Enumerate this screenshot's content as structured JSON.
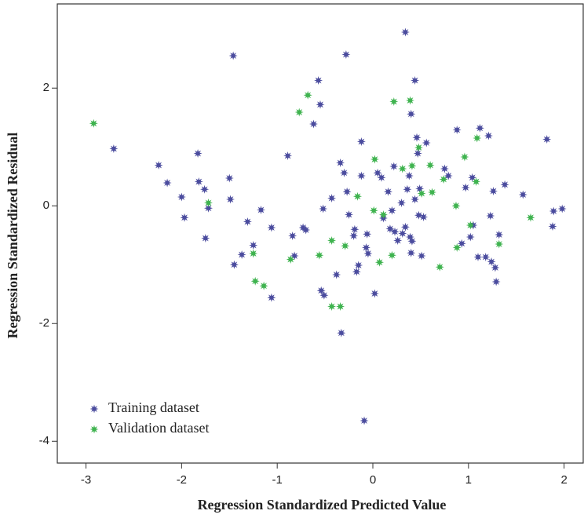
{
  "chart_data": {
    "type": "scatter",
    "x_label": "Regression Standardized Predicted Value",
    "y_label": "Regression Standardized Residual",
    "xlim": [
      -3.3,
      2.2
    ],
    "ylim": [
      -4.37,
      3.43
    ],
    "xticks": [
      -3,
      -2,
      -1,
      0,
      1,
      2
    ],
    "yticks": [
      -4,
      -2,
      0,
      2
    ],
    "legend": "lower left",
    "series": [
      {
        "name": "Training dataset",
        "color": "#4b4c9e",
        "x": [
          -2.71,
          -2.24,
          -2.15,
          -2.0,
          -1.97,
          -1.83,
          -1.82,
          -1.76,
          -1.72,
          -1.75,
          -1.46,
          -1.5,
          -1.49,
          -1.45,
          -1.37,
          -1.31,
          -1.25,
          -1.17,
          -1.06,
          -1.06,
          -0.89,
          -0.84,
          -0.82,
          -0.73,
          -0.7,
          -0.62,
          -0.57,
          -0.55,
          -0.54,
          -0.51,
          -0.52,
          -0.43,
          -0.38,
          -0.34,
          -0.33,
          -0.3,
          -0.28,
          -0.27,
          -0.25,
          -0.2,
          -0.19,
          -0.17,
          -0.15,
          -0.12,
          -0.12,
          -0.09,
          -0.06,
          -0.07,
          -0.05,
          0.02,
          0.05,
          0.09,
          0.11,
          0.16,
          0.18,
          0.2,
          0.22,
          0.23,
          0.26,
          0.3,
          0.31,
          0.34,
          0.34,
          0.36,
          0.38,
          0.39,
          0.4,
          0.4,
          0.41,
          0.44,
          0.44,
          0.46,
          0.47,
          0.48,
          0.49,
          0.51,
          0.53,
          0.56,
          0.75,
          0.79,
          0.88,
          0.97,
          1.04,
          1.02,
          1.05,
          0.93,
          1.1,
          1.12,
          1.18,
          1.21,
          1.24,
          1.23,
          1.26,
          1.28,
          1.29,
          1.32,
          1.38,
          1.82,
          1.89,
          1.88,
          1.98,
          1.57
        ],
        "y": [
          0.97,
          0.69,
          0.39,
          0.15,
          -0.2,
          0.89,
          0.41,
          0.28,
          -0.04,
          -0.55,
          2.55,
          0.47,
          0.11,
          -1.0,
          -0.83,
          -0.27,
          -0.67,
          -0.07,
          -0.37,
          -1.56,
          0.85,
          -0.51,
          -0.85,
          -0.37,
          -0.41,
          1.39,
          2.13,
          1.72,
          -1.44,
          -1.52,
          -0.05,
          0.13,
          -1.17,
          0.73,
          -2.16,
          0.56,
          2.57,
          0.24,
          -0.15,
          -0.51,
          -0.4,
          -1.12,
          -1.01,
          1.09,
          0.51,
          -3.65,
          -0.48,
          -0.71,
          -0.81,
          -1.49,
          0.56,
          0.48,
          -0.21,
          0.24,
          -0.39,
          -0.08,
          0.67,
          -0.44,
          -0.59,
          0.05,
          -0.47,
          2.95,
          -0.36,
          0.28,
          0.51,
          -0.53,
          1.56,
          -0.8,
          -0.6,
          2.13,
          0.11,
          1.16,
          0.89,
          -0.16,
          0.29,
          -0.85,
          -0.19,
          1.07,
          0.63,
          0.51,
          1.29,
          0.31,
          0.48,
          -0.53,
          -0.33,
          -0.64,
          -0.87,
          1.32,
          -0.87,
          1.19,
          -0.95,
          -0.17,
          0.25,
          -1.05,
          -1.29,
          -0.49,
          0.36,
          1.13,
          -0.09,
          -0.35,
          -0.05,
          0.19
        ]
      },
      {
        "name": "Validation dataset",
        "color": "#3fb34f",
        "x": [
          -2.92,
          -1.72,
          -1.25,
          -1.23,
          -1.14,
          -0.86,
          -0.77,
          -0.68,
          -0.56,
          -0.43,
          -0.43,
          -0.34,
          -0.29,
          -0.16,
          0.01,
          0.02,
          0.07,
          0.11,
          0.2,
          0.22,
          0.31,
          0.39,
          0.41,
          0.48,
          0.51,
          0.6,
          0.62,
          0.7,
          0.74,
          0.87,
          0.88,
          0.96,
          1.02,
          1.08,
          1.09,
          1.32,
          1.65
        ],
        "y": [
          1.4,
          0.05,
          -0.81,
          -1.28,
          -1.36,
          -0.91,
          1.59,
          1.88,
          -0.84,
          -1.71,
          -0.59,
          -1.71,
          -0.68,
          0.16,
          -0.08,
          0.79,
          -0.96,
          -0.15,
          -0.84,
          1.77,
          0.63,
          1.79,
          0.68,
          0.99,
          0.21,
          0.69,
          0.23,
          -1.04,
          0.45,
          0.0,
          -0.71,
          0.83,
          -0.33,
          0.41,
          1.15,
          -0.65,
          -0.2
        ]
      }
    ]
  }
}
